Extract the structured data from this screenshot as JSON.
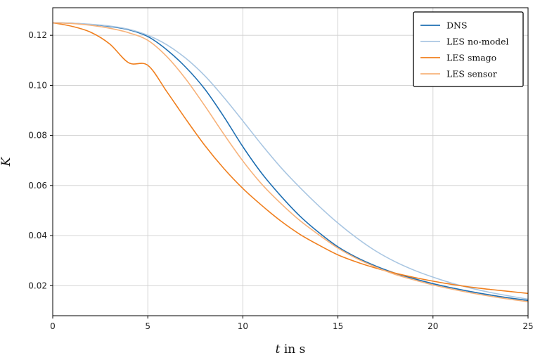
{
  "chart_data": {
    "type": "line",
    "title": "",
    "xlabel": {
      "var": "t",
      "rest": " in s"
    },
    "ylabel": "K",
    "xlim": [
      0,
      25
    ],
    "ylim": [
      0.008,
      0.131
    ],
    "xticks": [
      0,
      5,
      10,
      15,
      20,
      25
    ],
    "yticks": [
      0.02,
      0.04,
      0.06,
      0.08,
      0.1,
      0.12
    ],
    "xtick_labels": [
      "0",
      "5",
      "10",
      "15",
      "20",
      "25"
    ],
    "ytick_labels": [
      "0.02",
      "0.04",
      "0.06",
      "0.08",
      "0.10",
      "0.12"
    ],
    "grid": true,
    "legend_position": "top-right",
    "x": [
      0,
      1,
      2,
      3,
      4,
      5,
      6,
      7,
      8,
      9,
      10,
      11,
      12,
      13,
      14,
      15,
      16,
      17,
      18,
      19,
      20,
      21,
      22,
      23,
      24,
      25
    ],
    "series": [
      {
        "name": "DNS",
        "color": "#1f6fb2",
        "values": [
          0.125,
          0.1248,
          0.1243,
          0.1235,
          0.1222,
          0.1195,
          0.1142,
          0.1072,
          0.0985,
          0.0875,
          0.0755,
          0.0648,
          0.0558,
          0.0478,
          0.0412,
          0.0355,
          0.0312,
          0.0278,
          0.025,
          0.0228,
          0.0208,
          0.0191,
          0.0176,
          0.0163,
          0.0151,
          0.0141
        ]
      },
      {
        "name": "LES no-model",
        "color": "#a9c6e2",
        "values": [
          0.125,
          0.1248,
          0.1244,
          0.1237,
          0.1224,
          0.12,
          0.1162,
          0.1108,
          0.1038,
          0.0952,
          0.0858,
          0.0762,
          0.0672,
          0.0592,
          0.0518,
          0.045,
          0.039,
          0.0338,
          0.0296,
          0.0262,
          0.0234,
          0.021,
          0.019,
          0.0173,
          0.0159,
          0.0146
        ]
      },
      {
        "name": "LES smago",
        "color": "#f07f1e",
        "values": [
          0.125,
          0.1236,
          0.1212,
          0.1165,
          0.109,
          0.108,
          0.0975,
          0.0865,
          0.076,
          0.0668,
          0.0588,
          0.052,
          0.0458,
          0.0405,
          0.0362,
          0.0323,
          0.0294,
          0.027,
          0.025,
          0.0233,
          0.0218,
          0.0205,
          0.0194,
          0.0185,
          0.0177,
          0.0169
        ]
      },
      {
        "name": "LES sensor",
        "color": "#f7b27a",
        "values": [
          0.125,
          0.1247,
          0.124,
          0.1228,
          0.121,
          0.118,
          0.1115,
          0.1025,
          0.0918,
          0.0805,
          0.0698,
          0.0605,
          0.0528,
          0.046,
          0.0403,
          0.035,
          0.0308,
          0.0274,
          0.0245,
          0.0223,
          0.0203,
          0.0186,
          0.0171,
          0.0158,
          0.0146,
          0.0136
        ]
      }
    ]
  }
}
